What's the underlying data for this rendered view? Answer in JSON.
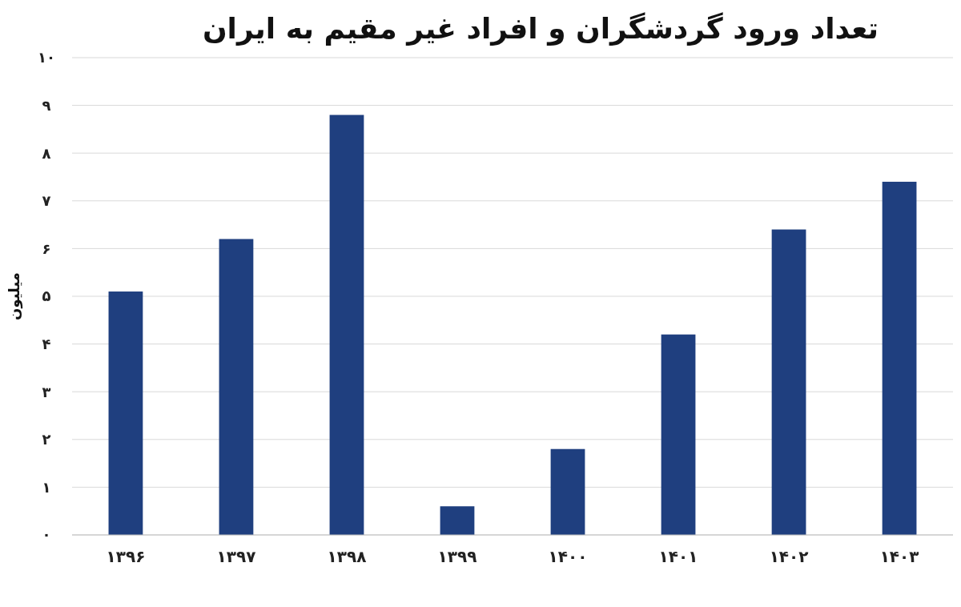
{
  "chart_data": {
    "type": "bar",
    "title": "تعداد ورود گردشگران و افراد غیر مقیم به ایران",
    "ylabel": "میلیون",
    "categories": [
      "۱۳۹۶",
      "۱۳۹۷",
      "۱۳۹۸",
      "۱۳۹۹",
      "۱۴۰۰",
      "۱۴۰۱",
      "۱۴۰۲",
      "۱۴۰۳"
    ],
    "values": [
      5.1,
      6.2,
      8.8,
      0.6,
      1.8,
      4.2,
      6.4,
      7.4
    ],
    "color": "#1f3f7f",
    "ylim": [
      0,
      10
    ],
    "yticks": [
      {
        "value": 0,
        "label": "۰"
      },
      {
        "value": 1,
        "label": "۱"
      },
      {
        "value": 2,
        "label": "۲"
      },
      {
        "value": 3,
        "label": "۳"
      },
      {
        "value": 4,
        "label": "۴"
      },
      {
        "value": 5,
        "label": "۵"
      },
      {
        "value": 6,
        "label": "۶"
      },
      {
        "value": 7,
        "label": "۷"
      },
      {
        "value": 8,
        "label": "۸"
      },
      {
        "value": 9,
        "label": "۹"
      },
      {
        "value": 10,
        "label": "۱۰"
      }
    ],
    "grid": "y"
  }
}
